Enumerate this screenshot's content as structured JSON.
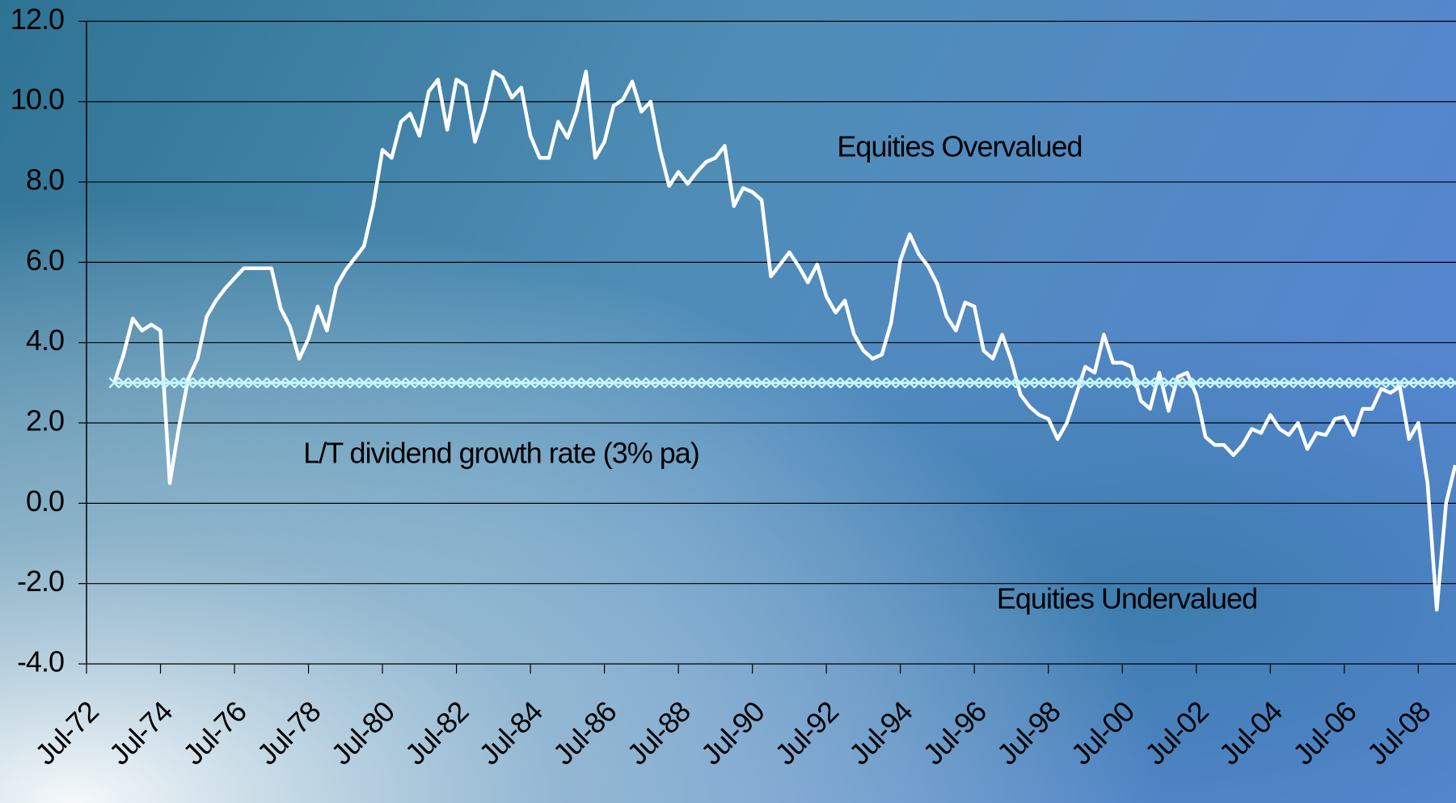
{
  "chart_data": {
    "type": "line",
    "annotations": [
      "Equities Overvalued",
      "Equities Undervalued"
    ],
    "categories": [
      "Jul-72",
      null,
      null,
      null,
      null,
      null,
      null,
      null,
      "Jul-74",
      null,
      null,
      null,
      null,
      null,
      null,
      null,
      "Jul-76",
      null,
      null,
      null,
      null,
      null,
      null,
      null,
      "Jul-78",
      null,
      null,
      null,
      null,
      null,
      null,
      null,
      "Jul-80",
      null,
      null,
      null,
      null,
      null,
      null,
      null,
      "Jul-82",
      null,
      null,
      null,
      null,
      null,
      null,
      null,
      "Jul-84",
      null,
      null,
      null,
      null,
      null,
      null,
      null,
      "Jul-86",
      null,
      null,
      null,
      null,
      null,
      null,
      null,
      "Jul-88",
      null,
      null,
      null,
      null,
      null,
      null,
      null,
      "Jul-90",
      null,
      null,
      null,
      null,
      null,
      null,
      null,
      "Jul-92",
      null,
      null,
      null,
      null,
      null,
      null,
      null,
      "Jul-94",
      null,
      null,
      null,
      null,
      null,
      null,
      null,
      "Jul-96",
      null,
      null,
      null,
      null,
      null,
      null,
      null,
      "Jul-98",
      null,
      null,
      null,
      null,
      null,
      null,
      null,
      "Jul-00",
      null,
      null,
      null,
      null,
      null,
      null,
      null,
      "Jul-02",
      null,
      null,
      null,
      null,
      null,
      null,
      null,
      "Jul-04",
      null,
      null,
      null,
      null,
      null,
      null,
      null,
      "Jul-06",
      null,
      null,
      null,
      null,
      null,
      null,
      null,
      "Jul-08",
      null,
      null,
      null,
      null
    ],
    "series": [
      {
        "color": "#ffffff",
        "values": [
          null,
          null,
          null,
          3.0,
          3.7,
          4.6,
          4.3,
          4.45,
          4.3,
          0.5,
          1.9,
          3.1,
          3.6,
          4.65,
          5.05,
          5.35,
          5.6,
          5.85,
          5.85,
          5.85,
          5.85,
          4.85,
          4.4,
          3.6,
          4.1,
          4.9,
          4.3,
          5.4,
          5.8,
          6.1,
          6.4,
          7.4,
          8.8,
          8.6,
          9.5,
          9.7,
          9.15,
          10.25,
          10.55,
          9.3,
          10.55,
          10.4,
          9.0,
          9.75,
          10.75,
          10.6,
          10.1,
          10.35,
          9.15,
          8.6,
          8.6,
          9.5,
          9.1,
          9.75,
          10.75,
          8.6,
          9.0,
          9.9,
          10.05,
          10.5,
          9.75,
          10.0,
          8.8,
          7.9,
          8.25,
          7.95,
          8.25,
          8.5,
          8.6,
          8.9,
          7.4,
          7.85,
          7.75,
          7.55,
          5.65,
          5.95,
          6.25,
          5.9,
          5.5,
          5.95,
          5.15,
          4.75,
          5.05,
          4.2,
          3.8,
          3.6,
          3.7,
          4.5,
          6.05,
          6.7,
          6.2,
          5.9,
          5.45,
          4.65,
          4.3,
          5.0,
          4.9,
          3.8,
          3.6,
          4.2,
          3.55,
          2.7,
          2.4,
          2.2,
          2.1,
          1.6,
          2.0,
          2.7,
          3.4,
          3.25,
          4.2,
          3.5,
          3.5,
          3.4,
          2.55,
          2.35,
          3.25,
          2.3,
          3.15,
          3.25,
          2.7,
          1.65,
          1.45,
          1.45,
          1.2,
          1.45,
          1.85,
          1.75,
          2.2,
          1.85,
          1.7,
          2.0,
          1.35,
          1.75,
          1.7,
          2.1,
          2.15,
          1.7,
          2.35,
          2.35,
          2.85,
          2.75,
          2.9,
          1.6,
          2.0,
          0.5,
          -2.65,
          0.0,
          0.95
        ]
      },
      {
        "name": "L/T dividend growth rate  (3% pa)",
        "color": "#c4f6fa",
        "marker": "x",
        "values": [
          null,
          null,
          null,
          3,
          3,
          3,
          3,
          3,
          3,
          3,
          3,
          3,
          3,
          3,
          3,
          3,
          3,
          3,
          3,
          3,
          3,
          3,
          3,
          3,
          3,
          3,
          3,
          3,
          3,
          3,
          3,
          3,
          3,
          3,
          3,
          3,
          3,
          3,
          3,
          3,
          3,
          3,
          3,
          3,
          3,
          3,
          3,
          3,
          3,
          3,
          3,
          3,
          3,
          3,
          3,
          3,
          3,
          3,
          3,
          3,
          3,
          3,
          3,
          3,
          3,
          3,
          3,
          3,
          3,
          3,
          3,
          3,
          3,
          3,
          3,
          3,
          3,
          3,
          3,
          3,
          3,
          3,
          3,
          3,
          3,
          3,
          3,
          3,
          3,
          3,
          3,
          3,
          3,
          3,
          3,
          3,
          3,
          3,
          3,
          3,
          3,
          3,
          3,
          3,
          3,
          3,
          3,
          3,
          3,
          3,
          3,
          3,
          3,
          3,
          3,
          3,
          3,
          3,
          3,
          3,
          3,
          3,
          3,
          3,
          3,
          3,
          3,
          3,
          3,
          3,
          3,
          3,
          3,
          3,
          3,
          3,
          3,
          3,
          3,
          3,
          3,
          3,
          3,
          3,
          3,
          3,
          3,
          3,
          3
        ]
      }
    ],
    "ylim": [
      -4,
      12
    ],
    "yticks": [
      {
        "value": -4,
        "label": "-4.0"
      },
      {
        "value": -2,
        "label": "-2.0"
      },
      {
        "value": 0,
        "label": "0.0"
      },
      {
        "value": 2,
        "label": "2.0"
      },
      {
        "value": 4,
        "label": "4.0"
      },
      {
        "value": 6,
        "label": "6.0"
      },
      {
        "value": 8,
        "label": "8.0"
      },
      {
        "value": 10,
        "label": "10.0"
      },
      {
        "value": 12,
        "label": "12.0"
      }
    ],
    "grid": true
  }
}
